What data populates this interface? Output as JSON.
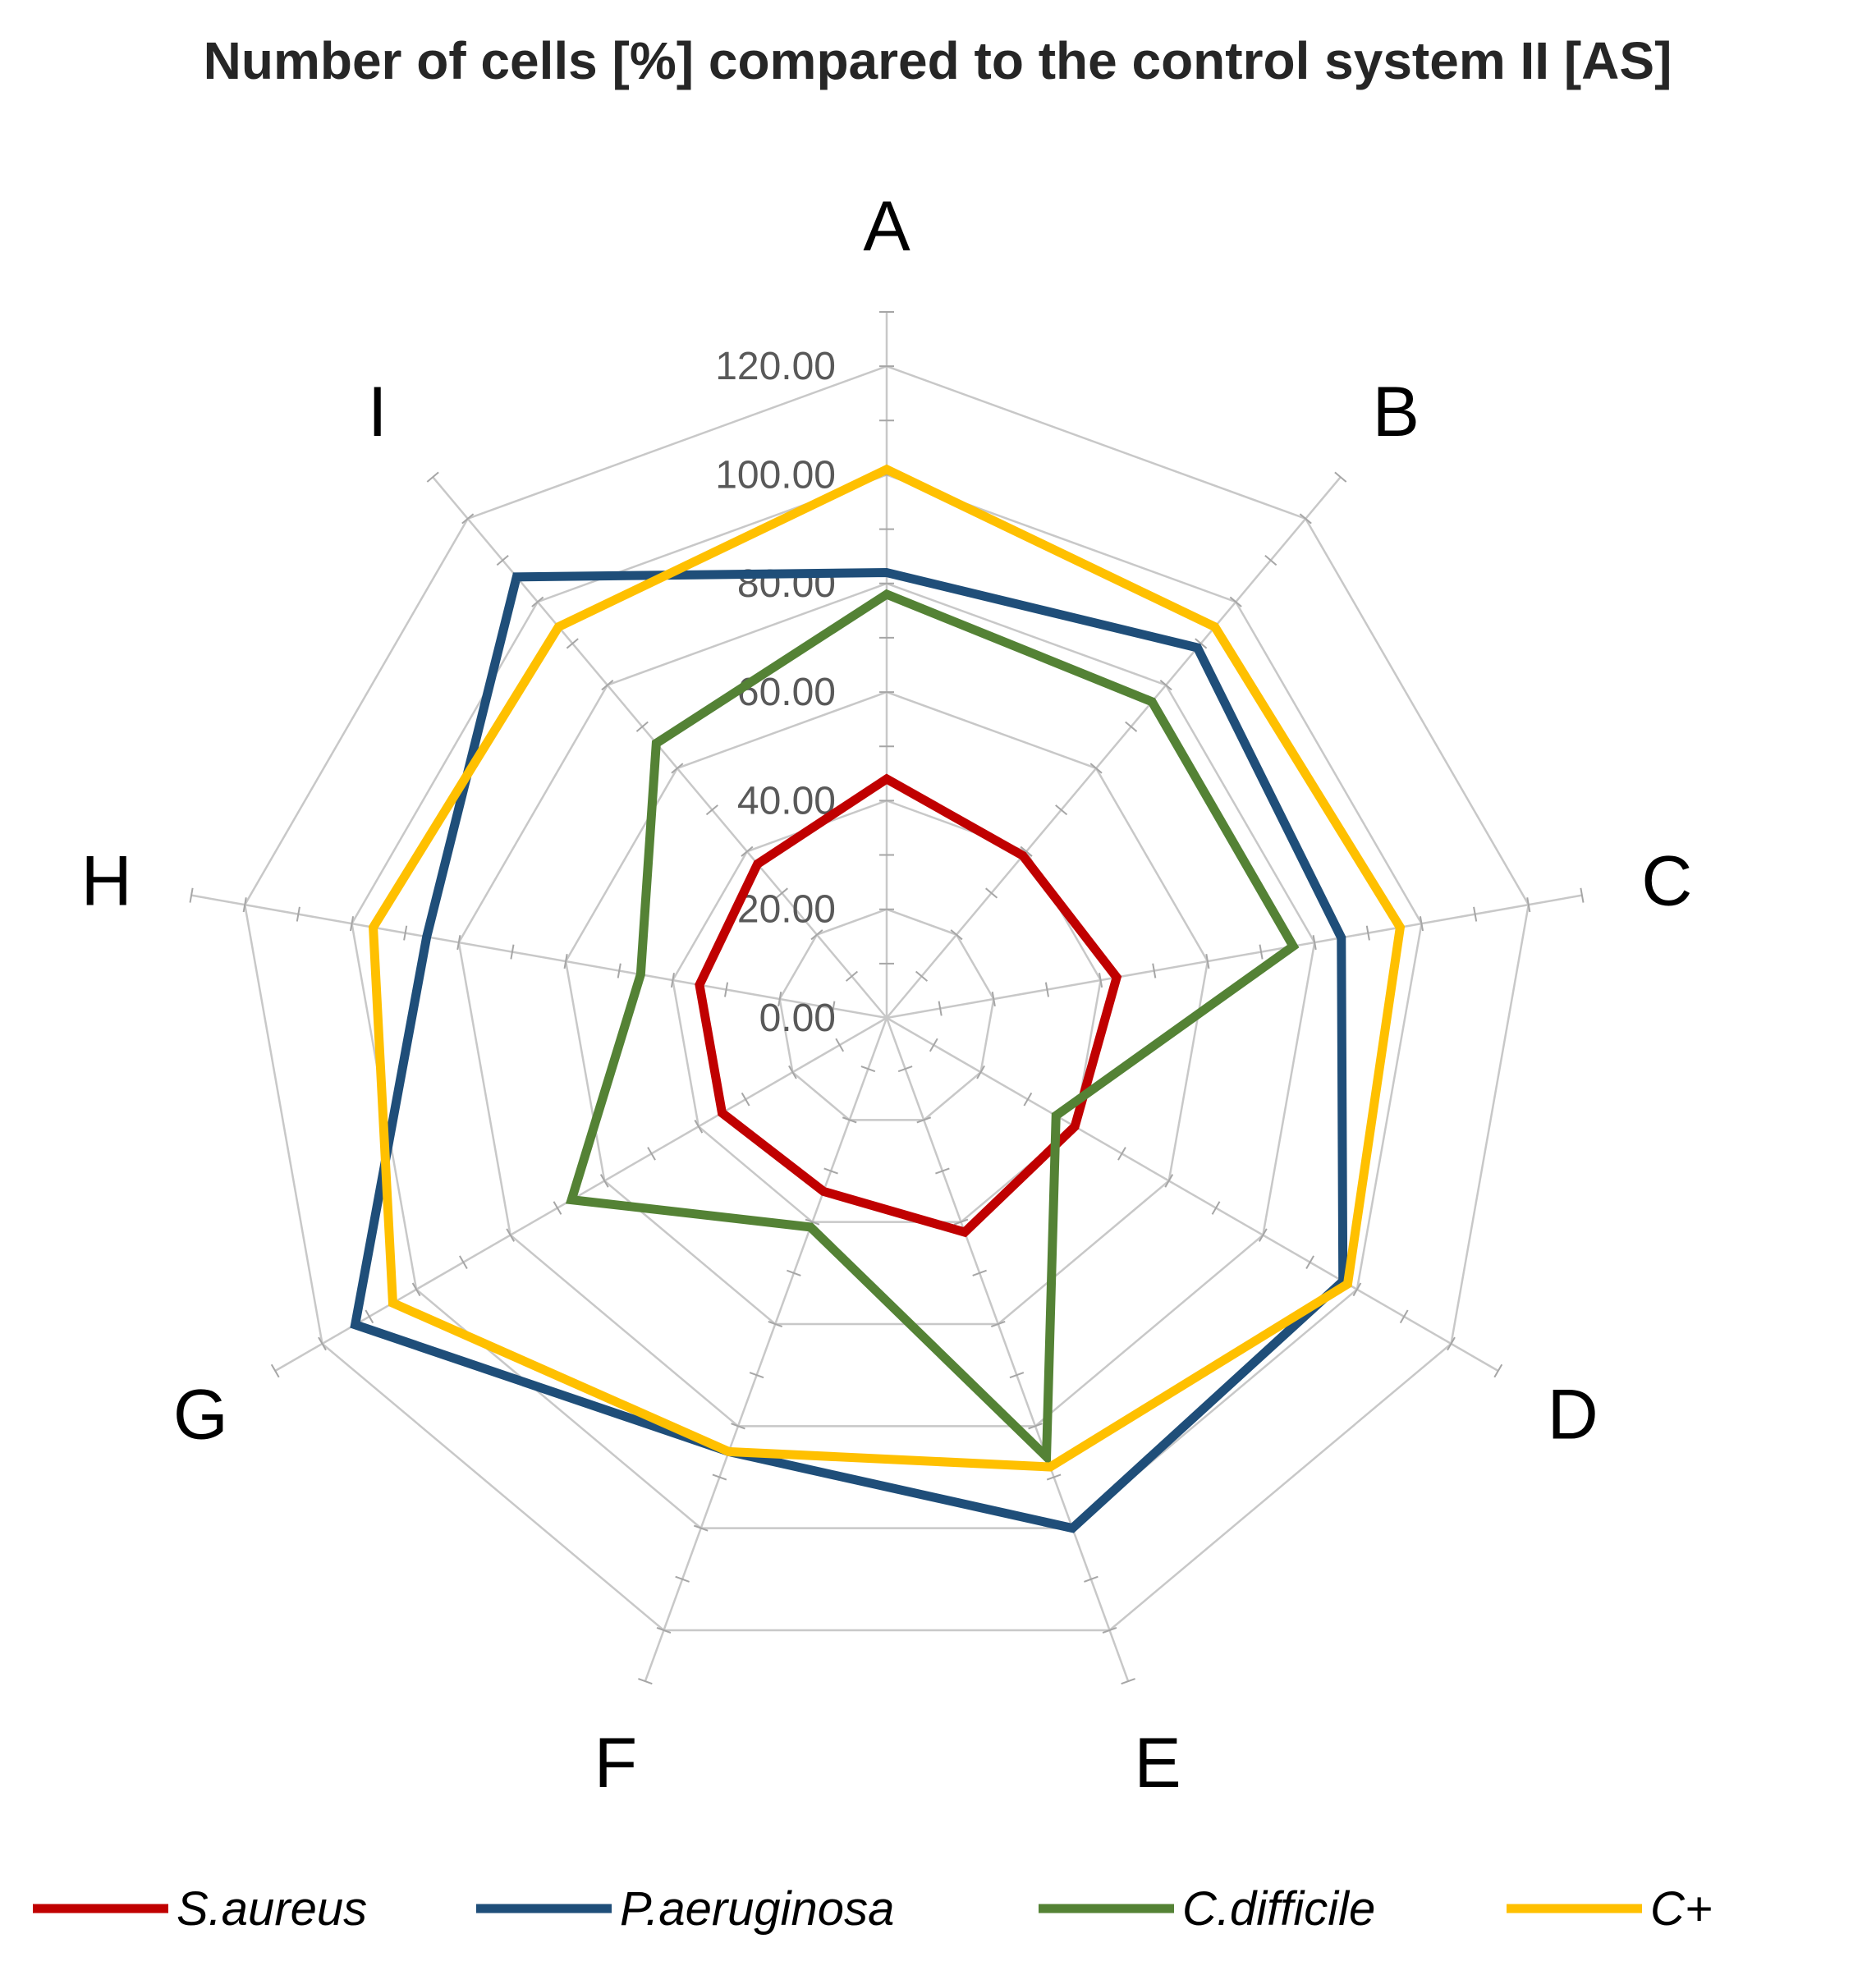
{
  "chart_data": {
    "type": "radar",
    "title": "Number of cells [%] compared to the control system II [AS]",
    "categories": [
      "A",
      "B",
      "C",
      "D",
      "E",
      "F",
      "G",
      "H",
      "I"
    ],
    "r_range": [
      0,
      130
    ],
    "tick_values": [
      0,
      20,
      40,
      60,
      80,
      100,
      120
    ],
    "tick_labels": [
      "0.00",
      "20.00",
      "40.00",
      "60.00",
      "80.00",
      "100.00",
      "120.00"
    ],
    "minor_tick_step": 10,
    "grid": true,
    "legend_position": "bottom",
    "series": [
      {
        "name": "S.aureus",
        "color": "#C00000",
        "values": [
          44,
          39,
          43,
          40,
          42,
          34,
          35,
          35,
          37
        ]
      },
      {
        "name": "P.aeruginosa",
        "color": "#1F4E79",
        "values": [
          82,
          89,
          85,
          97,
          100,
          85,
          113,
          86,
          106
        ]
      },
      {
        "name": "C.difficile",
        "color": "#548235",
        "values": [
          78,
          76,
          76,
          36,
          86,
          41,
          67,
          46,
          66
        ]
      },
      {
        "name": "C+",
        "color": "#FFC000",
        "values": [
          101,
          94,
          96,
          98,
          88,
          85,
          105,
          96,
          94
        ]
      }
    ]
  }
}
